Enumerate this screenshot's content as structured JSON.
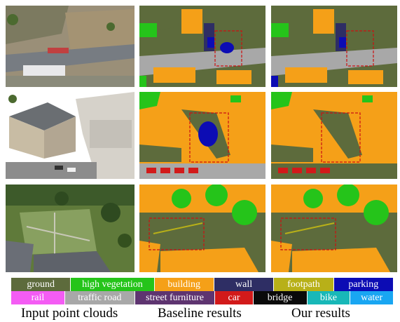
{
  "legend": {
    "row1": [
      {
        "label": "ground",
        "color": "#5d6b3c"
      },
      {
        "label": "high vegetation",
        "color": "#25c41a"
      },
      {
        "label": "building",
        "color": "#f5a018"
      },
      {
        "label": "wall",
        "color": "#2e2e64"
      },
      {
        "label": "footpath",
        "color": "#b8b018"
      },
      {
        "label": "parking",
        "color": "#0c0cb4"
      }
    ],
    "row2": [
      {
        "label": "rail",
        "color": "#f45cf4"
      },
      {
        "label": "traffic road",
        "color": "#a8a8a8"
      },
      {
        "label": "street furniture",
        "color": "#5e3470"
      },
      {
        "label": "car",
        "color": "#d21a1a"
      },
      {
        "label": "bridge",
        "color": "#0a0a0a"
      },
      {
        "label": "bike",
        "color": "#18b8b8"
      },
      {
        "label": "water",
        "color": "#19a6f2"
      }
    ]
  },
  "captions": {
    "input": "Input point clouds",
    "baseline": "Baseline results",
    "ours": "Our results"
  }
}
